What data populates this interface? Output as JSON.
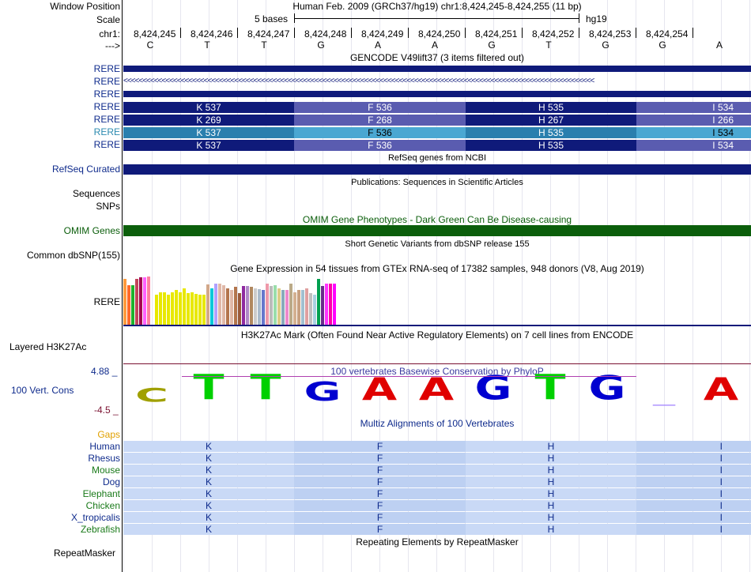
{
  "header": {
    "window_position_label": "Window Position",
    "scale_label": "Scale",
    "chrom_label": "chr1:",
    "strand_label": "--->",
    "assembly_title": "Human Feb. 2009 (GRCh37/hg19)   chr1:8,424,245-8,424,255 (11 bp)",
    "scale_text": "5 bases",
    "db": "hg19",
    "positions": [
      "8,424,245",
      "8,424,246",
      "8,424,247",
      "8,424,248",
      "8,424,249",
      "8,424,250",
      "8,424,251",
      "8,424,252",
      "8,424,253",
      "8,424,254"
    ],
    "bases": [
      "C",
      "T",
      "T",
      "G",
      "A",
      "A",
      "G",
      "T",
      "G",
      "G",
      "A"
    ]
  },
  "gencode": {
    "title": "GENCODE V49lift37 (3 items filtered out)",
    "rows": [
      {
        "label": "RERE",
        "kind": "solid",
        "label_color": "#0f2b8c"
      },
      {
        "label": "RERE",
        "kind": "arrows",
        "label_color": "#0f2b8c",
        "arrows": "<<<<<<<<<<<<<<<<<<<<<<<<<<<<<<<<<<<<<<<<<<<<<<<<<<<<<<<<<<<<<<<<<<<<<<<<<<<<<<<<<<<<<<<<<<<<<<<<<<<<<<<<<<<<<<<<<<<<<<<<<<<"
      },
      {
        "label": "RERE",
        "kind": "solid",
        "label_color": "#0f2b8c"
      },
      {
        "label": "RERE",
        "kind": "aa",
        "label_color": "#0f2b8c",
        "aa": [
          "K 537",
          "F 536",
          "H 535",
          "I 534"
        ],
        "colors": [
          "#0f1a7a",
          "#5a5cb0",
          "#0f1a7a",
          "#5a5cb0"
        ],
        "text_colors": [
          "#fff",
          "#fff",
          "#fff",
          "#fff"
        ]
      },
      {
        "label": "RERE",
        "kind": "aa",
        "label_color": "#0f2b8c",
        "aa": [
          "K 269",
          "F 268",
          "H 267",
          "I 266"
        ],
        "colors": [
          "#0f1a7a",
          "#5a5cb0",
          "#0f1a7a",
          "#5a5cb0"
        ],
        "text_colors": [
          "#fff",
          "#fff",
          "#fff",
          "#fff"
        ]
      },
      {
        "label": "RERE",
        "kind": "aa",
        "label_color": "#2d8bb0",
        "aa": [
          "K 537",
          "F 536",
          "H 535",
          "I 534"
        ],
        "colors": [
          "#2a7fae",
          "#4aa7d2",
          "#2a7fae",
          "#4aa7d2"
        ],
        "text_colors": [
          "#fff",
          "#000",
          "#fff",
          "#000"
        ]
      },
      {
        "label": "RERE",
        "kind": "aa",
        "label_color": "#0f2b8c",
        "aa": [
          "K 537",
          "F 536",
          "H 535",
          "I 534"
        ],
        "colors": [
          "#0f1a7a",
          "#5a5cb0",
          "#0f1a7a",
          "#5a5cb0"
        ],
        "text_colors": [
          "#fff",
          "#fff",
          "#fff",
          "#fff"
        ]
      }
    ]
  },
  "refseq": {
    "title": "RefSeq genes from NCBI",
    "label": "RefSeq Curated",
    "color": "#0f1a7a"
  },
  "publications": {
    "title": "Publications: Sequences in Scientific Articles",
    "label1": "Sequences",
    "label2": "SNPs"
  },
  "omim": {
    "title": "OMIM Gene Phenotypes - Dark Green Can Be Disease-causing",
    "label": "OMIM Genes",
    "color": "#0b5e0b"
  },
  "dbsnp": {
    "title": "Short Genetic Variants from dbSNP release 155",
    "label": "Common dbSNP(155)"
  },
  "gtex": {
    "title": "Gene Expression in 54 tissues from GTEx RNA-seq of 17382 samples, 948 donors (V8, Aug 2019)",
    "label": "RERE",
    "values": [
      0.95,
      0.82,
      0.82,
      0.95,
      0.98,
      0.98,
      1.0,
      0.0,
      0.62,
      0.68,
      0.68,
      0.62,
      0.68,
      0.72,
      0.68,
      0.75,
      0.66,
      0.68,
      0.64,
      0.62,
      0.62,
      0.84,
      0.75,
      0.85,
      0.85,
      0.82,
      0.75,
      0.72,
      0.78,
      0.65,
      0.8,
      0.8,
      0.78,
      0.76,
      0.74,
      0.72,
      0.85,
      0.8,
      0.82,
      0.76,
      0.72,
      0.72,
      0.85,
      0.68,
      0.72,
      0.72,
      0.76,
      0.66,
      0.62,
      0.95,
      0.8,
      0.85,
      0.85,
      0.85
    ],
    "colors": [
      "#ff9a3c",
      "#ff6a2a",
      "#1fb22a",
      "#c2465a",
      "#a50050",
      "#ff60ff",
      "#ff7fa0",
      "#ffffff",
      "#e8e800",
      "#e8e800",
      "#e8e800",
      "#e8e800",
      "#e8e800",
      "#e8e800",
      "#e8e800",
      "#e8e800",
      "#e8e800",
      "#e8e800",
      "#e8e800",
      "#e8e800",
      "#e8e800",
      "#d2a88a",
      "#00c8d8",
      "#b0a0ff",
      "#e0b8a8",
      "#e0b8a8",
      "#b3754d",
      "#e0b8a8",
      "#b3754d",
      "#9a5a3a",
      "#8f2aa0",
      "#b088c8",
      "#b08860",
      "#cccccc",
      "#aabbcc",
      "#6677cc",
      "#ee99aa",
      "#bbbbbb",
      "#99ddaa",
      "#ddcc88",
      "#88aabb",
      "#ee88cc",
      "#bbaa88",
      "#d4b090",
      "#c8a080",
      "#a0c0d0",
      "#e0a0a0",
      "#c0c0c0",
      "#aad0e0",
      "#00a050",
      "#6a2a8a",
      "#ff33ff",
      "#ff00aa",
      "#ff00ff"
    ]
  },
  "h3k27ac": {
    "title": "H3K27Ac Mark (Often Found Near Active Regulatory Elements) on 7 cell lines from ENCODE",
    "label": "Layered H3K27Ac"
  },
  "conservation": {
    "title": "100 vertebrates Basewise Conservation by PhyloP",
    "label": "100 Vert. Cons",
    "ymax": "4.88 _",
    "ymin": "-4.5 _",
    "letters": [
      "C",
      "T",
      "T",
      "G",
      "A",
      "A",
      "G",
      "T",
      "G",
      "_",
      "A"
    ],
    "letter_colors": [
      "#a0a000",
      "#00d000",
      "#00d000",
      "#0000d0",
      "#e00000",
      "#e00000",
      "#0000d0",
      "#00d000",
      "#0000d0",
      "#a080ff",
      "#e00000"
    ]
  },
  "multiz": {
    "title": "Multiz Alignments of 100 Vertebrates",
    "gaps_label": "Gaps",
    "aa": [
      "K",
      "F",
      "H",
      "I"
    ],
    "species": [
      {
        "name": "Human",
        "color": "#0f2b8c"
      },
      {
        "name": "Rhesus",
        "color": "#0f2b8c"
      },
      {
        "name": "Mouse",
        "color": "#1a7a1a"
      },
      {
        "name": "Dog",
        "color": "#0f2b8c"
      },
      {
        "name": "Elephant",
        "color": "#1a7a1a"
      },
      {
        "name": "Chicken",
        "color": "#1a7a1a"
      },
      {
        "name": "X_tropicalis",
        "color": "#0f2b8c"
      },
      {
        "name": "Zebrafish",
        "color": "#1a7a1a"
      }
    ]
  },
  "repeatmasker": {
    "title": "Repeating Elements by RepeatMasker",
    "label": "RepeatMasker"
  }
}
